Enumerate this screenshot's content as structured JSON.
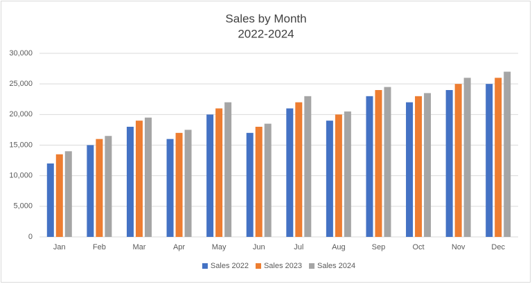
{
  "chart_data": {
    "type": "bar",
    "title": "Sales by Month",
    "subtitle": "2022-2024",
    "categories": [
      "Jan",
      "Feb",
      "Mar",
      "Apr",
      "May",
      "Jun",
      "Jul",
      "Aug",
      "Sep",
      "Oct",
      "Nov",
      "Dec"
    ],
    "series": [
      {
        "name": "Sales 2022",
        "color": "#4472c4",
        "values": [
          12000,
          15000,
          18000,
          16000,
          20000,
          17000,
          21000,
          19000,
          23000,
          22000,
          24000,
          25000
        ]
      },
      {
        "name": "Sales 2023",
        "color": "#ed7d31",
        "values": [
          13500,
          16000,
          19000,
          17000,
          21000,
          18000,
          22000,
          20000,
          24000,
          23000,
          25000,
          26000
        ]
      },
      {
        "name": "Sales 2024",
        "color": "#a5a5a5",
        "values": [
          14000,
          16500,
          19500,
          17500,
          22000,
          18500,
          23000,
          20500,
          24500,
          23500,
          26000,
          27000
        ]
      }
    ],
    "ylim": [
      0,
      30000
    ],
    "yticks": [
      0,
      {
        "value": 5000,
        "label": "5,000"
      },
      {
        "value": 10000,
        "label": "10,000"
      },
      {
        "value": 15000,
        "label": "15,000"
      },
      {
        "value": 20000,
        "label": "20,000"
      },
      {
        "value": 25000,
        "label": "25,000"
      },
      {
        "value": 30000,
        "label": "30,000"
      }
    ],
    "grid": true,
    "legend": "bottom"
  }
}
